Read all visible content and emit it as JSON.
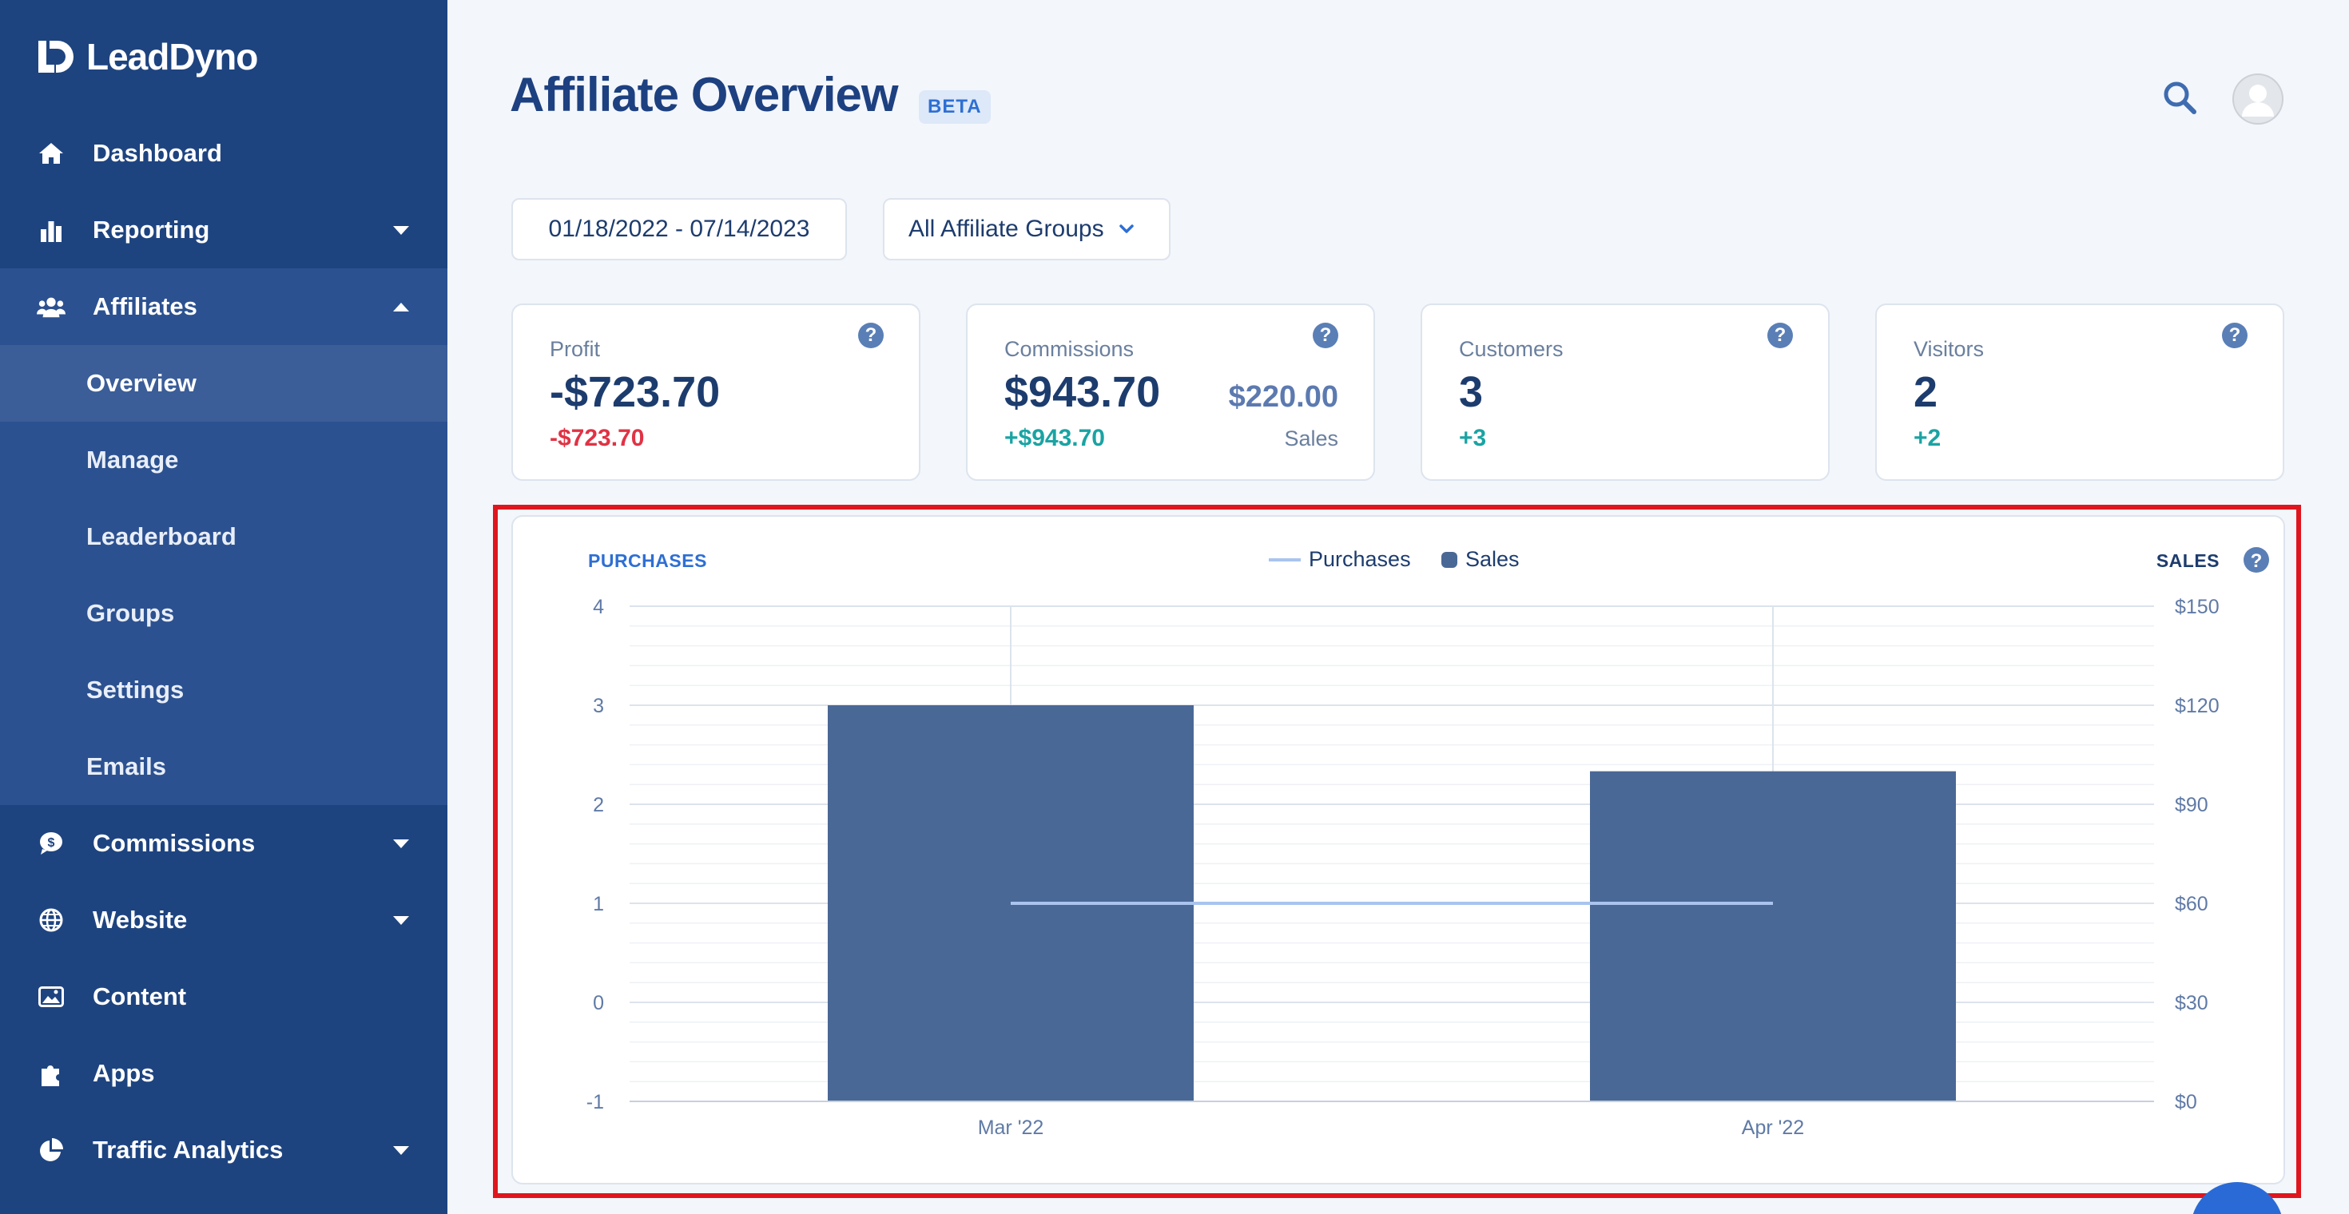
{
  "app": {
    "name": "LeadDyno"
  },
  "sidebar": {
    "items": [
      {
        "label": "Dashboard",
        "icon": "home-icon"
      },
      {
        "label": "Reporting",
        "icon": "bar-chart-icon",
        "caret": "down"
      },
      {
        "label": "Affiliates",
        "icon": "users-icon",
        "caret": "up",
        "expanded": true
      },
      {
        "label": "Commissions",
        "icon": "dollar-bubble-icon",
        "caret": "down"
      },
      {
        "label": "Website",
        "icon": "globe-icon",
        "caret": "down"
      },
      {
        "label": "Content",
        "icon": "image-icon"
      },
      {
        "label": "Apps",
        "icon": "puzzle-icon"
      },
      {
        "label": "Traffic Analytics",
        "icon": "pie-chart-icon",
        "caret": "down"
      }
    ],
    "affiliates_sub": [
      "Overview",
      "Manage",
      "Leaderboard",
      "Groups",
      "Settings",
      "Emails"
    ],
    "active_sub": "Overview"
  },
  "header": {
    "title": "Affiliate Overview",
    "badge": "BETA"
  },
  "filters": {
    "date_range": "01/18/2022 - 07/14/2023",
    "group": "All Affiliate Groups"
  },
  "cards": {
    "profit": {
      "label": "Profit",
      "value": "-$723.70",
      "delta": "-$723.70"
    },
    "commissions": {
      "label": "Commissions",
      "value": "$943.70",
      "delta": "+$943.70",
      "secondary_value": "$220.00",
      "secondary_label": "Sales"
    },
    "customers": {
      "label": "Customers",
      "value": "3",
      "delta": "+3"
    },
    "visitors": {
      "label": "Visitors",
      "value": "2",
      "delta": "+2"
    }
  },
  "help_glyph": "?",
  "colors": {
    "sidebar": "#1e4480",
    "bar": "#4a6896",
    "line": "#a9c4ef",
    "negative": "#e03345",
    "positive": "#1ba3a3",
    "highlight": "#e0161f"
  },
  "chart_data": {
    "type": "bar",
    "left_axis_title": "PURCHASES",
    "right_axis_title": "SALES",
    "categories": [
      "Mar '22",
      "Apr '22"
    ],
    "left_ticks": [
      "4",
      "3",
      "2",
      "1",
      "0",
      "-1"
    ],
    "right_ticks": [
      "$150",
      "$120",
      "$90",
      "$60",
      "$30",
      "$0"
    ],
    "left_ylim": [
      -1,
      4
    ],
    "right_ylim": [
      0,
      150
    ],
    "series": [
      {
        "name": "Purchases",
        "kind": "line",
        "axis": "left",
        "values": [
          1,
          1
        ]
      },
      {
        "name": "Sales",
        "kind": "bar",
        "axis": "right",
        "values": [
          120,
          100
        ]
      }
    ],
    "legend": "top-center",
    "grid": true
  }
}
